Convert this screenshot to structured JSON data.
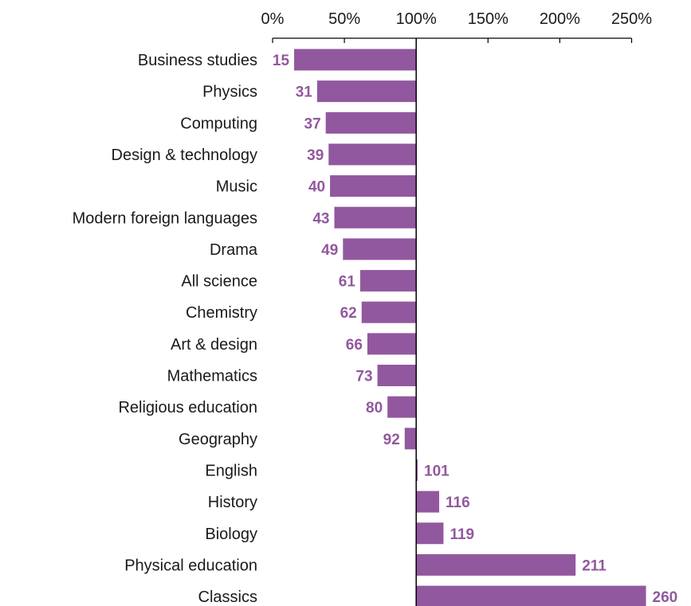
{
  "chart_data": {
    "type": "bar",
    "orientation": "horizontal",
    "title": "",
    "xlabel": "",
    "ylabel": "",
    "xlim": [
      0,
      250
    ],
    "x_ticks": [
      "0%",
      "50%",
      "100%",
      "150%",
      "200%",
      "250%"
    ],
    "x_tick_values": [
      0,
      50,
      100,
      150,
      200,
      250
    ],
    "baseline": 100,
    "axis_position": "top",
    "grid": false,
    "bar_color": "#92589f",
    "label_color": "#92589f",
    "categories": [
      "Business studies",
      "Physics",
      "Computing",
      "Design & technology",
      "Music",
      "Modern foreign languages",
      "Drama",
      "All science",
      "Chemistry",
      "Art & design",
      "Mathematics",
      "Religious education",
      "Geography",
      "English",
      "History",
      "Biology",
      "Physical education",
      "Classics"
    ],
    "values": [
      15,
      31,
      37,
      39,
      40,
      43,
      49,
      61,
      62,
      66,
      73,
      80,
      92,
      101,
      116,
      119,
      211,
      260
    ],
    "value_labels": [
      "15",
      "31",
      "37",
      "39",
      "40",
      "43",
      "49",
      "61",
      "62",
      "66",
      "73",
      "80",
      "92",
      "101",
      "116",
      "119",
      "211",
      "260"
    ]
  }
}
